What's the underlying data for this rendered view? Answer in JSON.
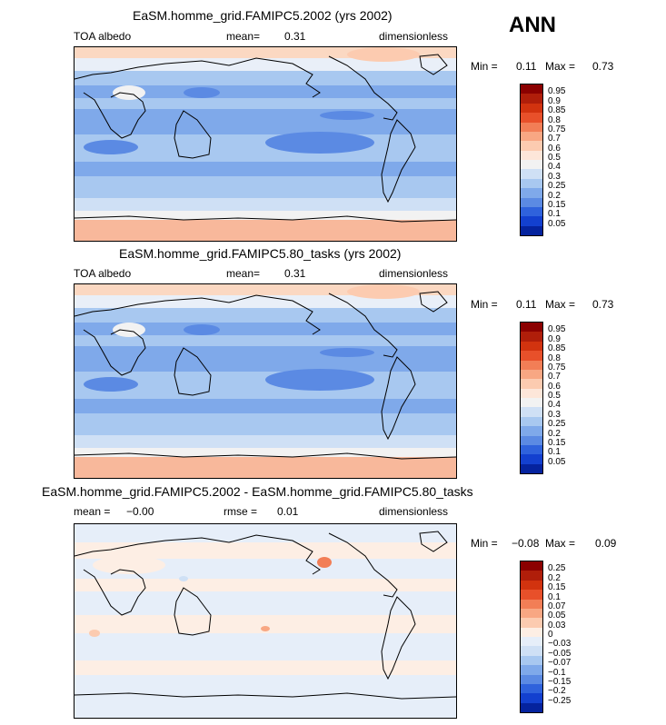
{
  "header": {
    "season": "ANN"
  },
  "panels": [
    {
      "title": "EaSM.homme_grid.FAMIPC5.2002 (yrs 2002)",
      "left_label": "TOA albedo",
      "mid_label": "mean=",
      "mid_value": "0.31",
      "right_label": "dimensionless",
      "min_label": "Min =",
      "min_value": "0.11",
      "max_label": "Max =",
      "max_value": "0.73"
    },
    {
      "title": "EaSM.homme_grid.FAMIPC5.80_tasks (yrs 2002)",
      "left_label": "TOA albedo",
      "mid_label": "mean=",
      "mid_value": "0.31",
      "right_label": "dimensionless",
      "min_label": "Min =",
      "min_value": "0.11",
      "max_label": "Max =",
      "max_value": "0.73"
    },
    {
      "title": "EaSM.homme_grid.FAMIPC5.2002 - EaSM.homme_grid.FAMIPC5.80_tasks",
      "left_label": "mean =",
      "left_value": "−0.00",
      "mid_label": "rmse =",
      "mid_value": "0.01",
      "right_label": "dimensionless",
      "min_label": "Min =",
      "min_value": "−0.08",
      "max_label": "Max =",
      "max_value": "0.09"
    }
  ],
  "colorbars": [
    {
      "ticks": [
        "0.95",
        "0.9",
        "0.85",
        "0.8",
        "0.75",
        "0.7",
        "0.6",
        "0.5",
        "0.4",
        "0.3",
        "0.25",
        "0.2",
        "0.15",
        "0.1",
        "0.05"
      ],
      "colors": [
        "#8b0000",
        "#b01e0a",
        "#d2330f",
        "#e8502a",
        "#f27e56",
        "#f8a783",
        "#fccbb0",
        "#fde6d9",
        "#f2f2f2",
        "#cfe0f5",
        "#a8c8f0",
        "#7fa9ea",
        "#5b8ae3",
        "#2f62dc",
        "#1340cf",
        "#05239e"
      ]
    },
    {
      "ticks": [
        "0.95",
        "0.9",
        "0.85",
        "0.8",
        "0.75",
        "0.7",
        "0.6",
        "0.5",
        "0.4",
        "0.3",
        "0.25",
        "0.2",
        "0.15",
        "0.1",
        "0.05"
      ],
      "colors": [
        "#8b0000",
        "#b01e0a",
        "#d2330f",
        "#e8502a",
        "#f27e56",
        "#f8a783",
        "#fccbb0",
        "#fde6d9",
        "#f2f2f2",
        "#cfe0f5",
        "#a8c8f0",
        "#7fa9ea",
        "#5b8ae3",
        "#2f62dc",
        "#1340cf",
        "#05239e"
      ]
    },
    {
      "ticks": [
        "0.25",
        "0.2",
        "0.15",
        "0.1",
        "0.07",
        "0.05",
        "0.03",
        "0",
        "−0.03",
        "−0.05",
        "−0.07",
        "−0.1",
        "−0.15",
        "−0.2",
        "−0.25"
      ],
      "colors": [
        "#8b0000",
        "#b01e0a",
        "#d2330f",
        "#e8502a",
        "#f27e56",
        "#f8a783",
        "#fccbb0",
        "#fdeee4",
        "#e6eef9",
        "#cfe0f5",
        "#a8c8f0",
        "#7fa9ea",
        "#5b8ae3",
        "#2f62dc",
        "#1340cf",
        "#05239e"
      ]
    }
  ],
  "chart_data": [
    {
      "type": "heatmap",
      "title": "EaSM.homme_grid.FAMIPC5.2002 (yrs 2002)",
      "variable": "TOA albedo",
      "units": "dimensionless",
      "mean": 0.31,
      "min": 0.11,
      "max": 0.73,
      "levels": [
        0.05,
        0.1,
        0.15,
        0.2,
        0.25,
        0.3,
        0.4,
        0.5,
        0.6,
        0.7,
        0.75,
        0.8,
        0.85,
        0.9,
        0.95
      ]
    },
    {
      "type": "heatmap",
      "title": "EaSM.homme_grid.FAMIPC5.80_tasks (yrs 2002)",
      "variable": "TOA albedo",
      "units": "dimensionless",
      "mean": 0.31,
      "min": 0.11,
      "max": 0.73,
      "levels": [
        0.05,
        0.1,
        0.15,
        0.2,
        0.25,
        0.3,
        0.4,
        0.5,
        0.6,
        0.7,
        0.75,
        0.8,
        0.85,
        0.9,
        0.95
      ]
    },
    {
      "type": "heatmap",
      "title": "EaSM.homme_grid.FAMIPC5.2002 - EaSM.homme_grid.FAMIPC5.80_tasks",
      "units": "dimensionless",
      "mean": -0.0,
      "rmse": 0.01,
      "min": -0.08,
      "max": 0.09,
      "levels": [
        -0.25,
        -0.2,
        -0.15,
        -0.1,
        -0.07,
        -0.05,
        -0.03,
        0,
        0.03,
        0.05,
        0.07,
        0.1,
        0.15,
        0.2,
        0.25
      ]
    }
  ]
}
